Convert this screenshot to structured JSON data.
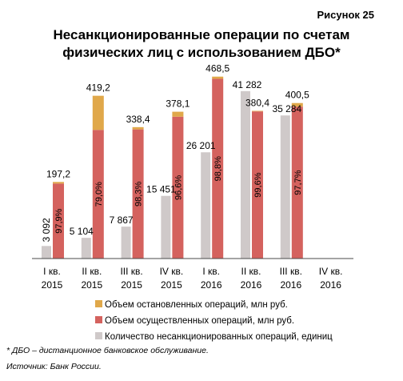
{
  "figure_label": "Рисунок 25",
  "footnote": "* ДБО – дистанционное банковское обслуживание.",
  "source": "Источник: Банк России.",
  "chart_data": {
    "type": "bar",
    "title": "Несанкционированные операции по счетам физических лиц с использованием ДБО*",
    "title_lines": [
      "Несанкционированные операции по счетам",
      "физических лиц с использованием ДБО*"
    ],
    "categories": [
      [
        "I кв.",
        "2015"
      ],
      [
        "II кв.",
        "2015"
      ],
      [
        "III кв.",
        "2015"
      ],
      [
        "IV кв.",
        "2015"
      ],
      [
        "I кв.",
        "2016"
      ],
      [
        "II кв.",
        "2016"
      ],
      [
        "III кв.",
        "2016"
      ],
      [
        "IV кв.",
        "2016"
      ]
    ],
    "count_series": {
      "name": "Количество несанкционированных операций, единиц",
      "color": "#cfc9c9",
      "values": [
        3092,
        5104,
        7867,
        15451,
        26201,
        41282,
        35284,
        null
      ],
      "labels": [
        "3 092",
        "5 104",
        "7 867",
        "15 451",
        "26 201",
        "41 282",
        "35 284",
        ""
      ],
      "ylim": [
        0,
        45000
      ]
    },
    "volume_series": [
      {
        "name": "Объем осуществленных операций, млн руб.",
        "color": "#d4625e",
        "values": [
          193.1,
          331.2,
          332.6,
          365.3,
          462.9,
          378.9,
          391.3,
          null
        ]
      },
      {
        "name": "Объем остановленных операций, млн руб.",
        "color": "#e0a84a",
        "values": [
          4.1,
          88.0,
          5.8,
          12.8,
          5.6,
          1.5,
          9.2,
          null
        ]
      }
    ],
    "volume_totals": [
      "197,2",
      "419,2",
      "338,4",
      "378,1",
      "468,5",
      "380,4",
      "400,5",
      ""
    ],
    "volume_total_values": [
      197.2,
      419.2,
      338.4,
      378.1,
      468.5,
      380.4,
      400.5,
      null
    ],
    "share_labels": [
      "97,9%",
      "79,0%",
      "98,3%",
      "96,6%",
      "98,8%",
      "99,6%",
      "97,7%",
      ""
    ],
    "volume_ylim": [
      0,
      470
    ],
    "grid": false,
    "legend_position": "bottom"
  }
}
